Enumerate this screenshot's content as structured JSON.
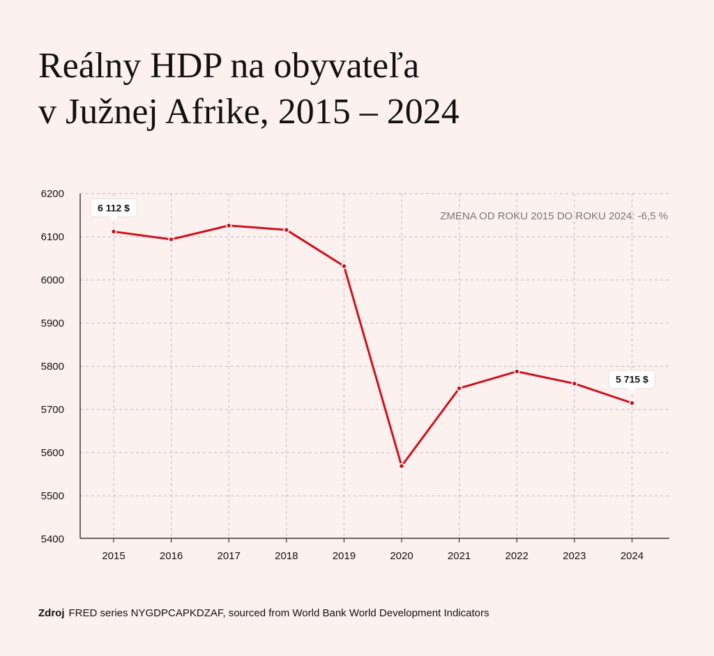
{
  "title_line1": "Reálny HDP na obyvateľa",
  "title_line2": "v Južnej Afrike, 2015 – 2024",
  "annotation": "ZMENA OD ROKU 2015 DO ROKU 2024: -6,5 %",
  "source_label": "Zdroj",
  "source_text": "FRED series NYGDPCAPKDZAF, sourced from World Bank World Development Indicators",
  "colors": {
    "line": "#d0101c",
    "grid": "#c9c3c2",
    "background": "#fdf1f0"
  },
  "chart_data": {
    "type": "line",
    "x": [
      2015,
      2016,
      2017,
      2018,
      2019,
      2020,
      2021,
      2022,
      2023,
      2024
    ],
    "series": [
      {
        "values": [
          6112,
          6094,
          6126,
          6116,
          6032,
          5569,
          5749,
          5788,
          5760,
          5715
        ]
      }
    ],
    "ylim": [
      5400,
      6200
    ],
    "yticks": [
      5400,
      5500,
      5600,
      5700,
      5800,
      5900,
      6000,
      6100,
      6200
    ],
    "xticks": [
      "2015",
      "2016",
      "2017",
      "2018",
      "2019",
      "2020",
      "2021",
      "2022",
      "2023",
      "2024"
    ],
    "grid": true,
    "data_labels": [
      {
        "x": 2015,
        "text": "6 112 $"
      },
      {
        "x": 2024,
        "text": "5 715 $"
      }
    ]
  }
}
